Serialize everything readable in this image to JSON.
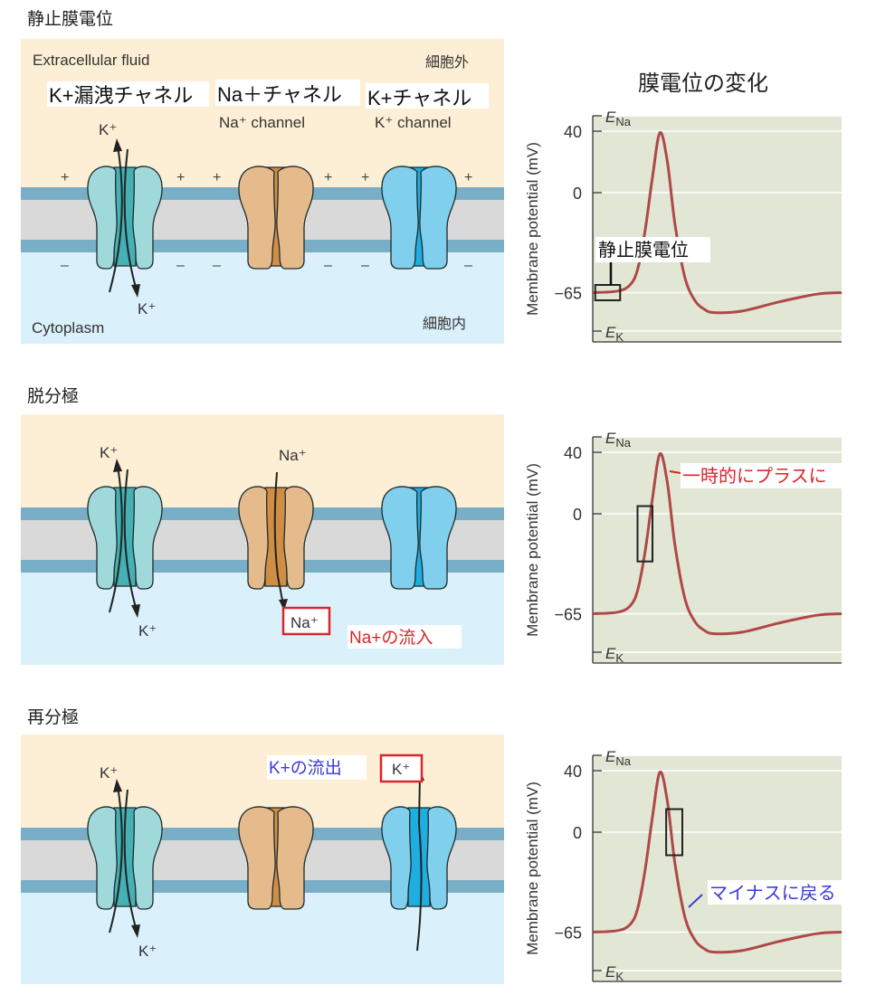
{
  "sections": [
    {
      "title": "静止膜電位"
    },
    {
      "title": "脱分極"
    },
    {
      "title": "再分極"
    }
  ],
  "panel1": {
    "extracellular": "Extracellular fluid",
    "extracellular_jp": "細胞外",
    "cytoplasm": "Cytoplasm",
    "cytoplasm_jp": "細胞内",
    "leak_channel_jp": "K+漏洩チャネル",
    "na_channel_jp": "Na＋チャネル",
    "k_channel_jp": "K+チャネル",
    "na_channel": "Na⁺ channel",
    "k_channel": "K⁺ channel",
    "k_top": "K⁺",
    "k_bottom": "K⁺",
    "plus": "+",
    "minus": "–"
  },
  "panel2": {
    "k_top": "K⁺",
    "k_bottom": "K⁺",
    "na_top": "Na⁺",
    "na_box": "Na⁺",
    "note": "Na+の流入"
  },
  "panel3": {
    "k_top": "K⁺",
    "k_bottom": "K⁺",
    "k_box": "K⁺",
    "note": "K+の流出"
  },
  "chart_title": "膜電位の変化",
  "colors": {
    "extracellular": "#fdefd5",
    "cytoplasm": "#daf0fa",
    "membrane": "#79afc6",
    "bilayer": "#d9d9d9",
    "plot_bg": "#e1e7d4",
    "trace": "#b04848",
    "red": "#d9262b",
    "blue": "#3a3ad8"
  },
  "chart_data": [
    {
      "type": "line",
      "ylabel": "Membrane potential (mV)",
      "xlabel": "",
      "yticks": [
        "40",
        "0",
        "−65"
      ],
      "ytick_values": [
        40,
        0,
        -65
      ],
      "reference_lines": [
        {
          "label": "E",
          "sub": "Na",
          "value": 50
        },
        {
          "label": "E",
          "sub": "K",
          "value": -90
        }
      ],
      "x": [
        0,
        10,
        15,
        18,
        21,
        24,
        27,
        30,
        33,
        37,
        41,
        45,
        49,
        60,
        75,
        90,
        100
      ],
      "y": [
        -65,
        -64,
        -60,
        -50,
        -25,
        10,
        39,
        20,
        -20,
        -55,
        -70,
        -76,
        -78,
        -77,
        -71,
        -66,
        -65
      ],
      "xlim": [
        0,
        100
      ],
      "ylim": [
        -95,
        52
      ],
      "annotation": {
        "text": "静止膜電位",
        "range_x": [
          1,
          11
        ],
        "range_y": [
          -70,
          -60
        ]
      }
    },
    {
      "type": "line",
      "ylabel": "Membrane potential (mV)",
      "yticks": [
        "40",
        "0",
        "−65"
      ],
      "ytick_values": [
        40,
        0,
        -65
      ],
      "reference_lines": [
        {
          "label": "E",
          "sub": "Na",
          "value": 50
        },
        {
          "label": "E",
          "sub": "K",
          "value": -90
        }
      ],
      "x": [
        0,
        10,
        15,
        18,
        21,
        24,
        27,
        30,
        33,
        37,
        41,
        45,
        49,
        60,
        75,
        90,
        100
      ],
      "y": [
        -65,
        -64,
        -60,
        -50,
        -25,
        10,
        39,
        20,
        -20,
        -55,
        -70,
        -76,
        -78,
        -77,
        -71,
        -66,
        -65
      ],
      "xlim": [
        0,
        100
      ],
      "ylim": [
        -95,
        52
      ],
      "annotation": {
        "text": "一時的にプラスに",
        "range_x": [
          18,
          24
        ],
        "range_y": [
          -31,
          5
        ]
      }
    },
    {
      "type": "line",
      "ylabel": "Membrane potential (mV)",
      "yticks": [
        "40",
        "0",
        "−65"
      ],
      "ytick_values": [
        40,
        0,
        -65
      ],
      "reference_lines": [
        {
          "label": "E",
          "sub": "Na",
          "value": 50
        },
        {
          "label": "E",
          "sub": "K",
          "value": -90
        }
      ],
      "x": [
        0,
        10,
        15,
        18,
        21,
        24,
        27,
        30,
        33,
        37,
        41,
        45,
        49,
        60,
        75,
        90,
        100
      ],
      "y": [
        -65,
        -64,
        -60,
        -50,
        -25,
        10,
        39,
        20,
        -20,
        -55,
        -70,
        -76,
        -78,
        -77,
        -71,
        -66,
        -65
      ],
      "xlim": [
        0,
        100
      ],
      "ylim": [
        -95,
        52
      ],
      "annotation": {
        "text": "マイナスに戻る",
        "range_x": [
          29.5,
          36
        ],
        "range_y": [
          -15,
          15
        ]
      }
    }
  ]
}
